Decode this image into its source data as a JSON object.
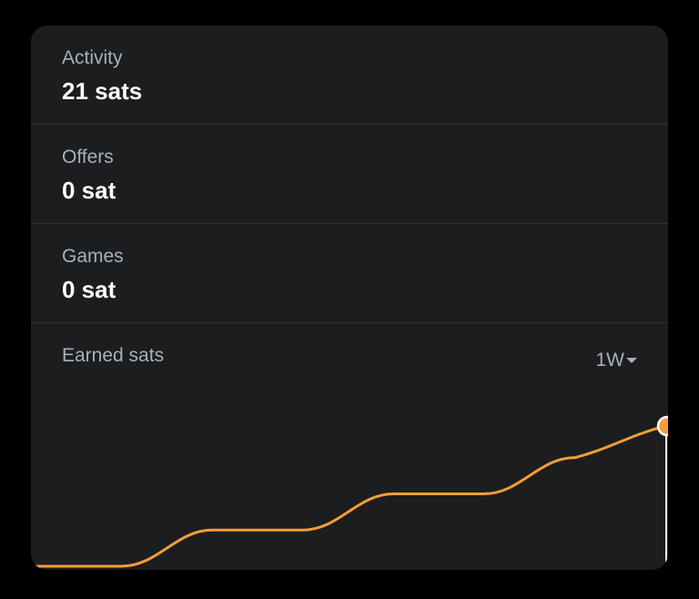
{
  "stats": [
    {
      "label": "Activity",
      "value": "21 sats"
    },
    {
      "label": "Offers",
      "value": "0 sat"
    },
    {
      "label": "Games",
      "value": "0 sat"
    }
  ],
  "chart": {
    "title": "Earned sats",
    "range_label": "1W"
  },
  "colors": {
    "line": "#f49d37",
    "background": "#1c1d1f",
    "label": "#a7b0bb"
  },
  "chart_data": {
    "type": "line",
    "title": "Earned sats",
    "xlabel": "",
    "ylabel": "",
    "x": [
      1,
      2,
      3,
      4,
      5,
      6,
      7,
      8
    ],
    "series": [
      {
        "values": [
          0,
          0,
          8,
          8,
          16,
          16,
          24,
          31
        ]
      }
    ],
    "ylim": [
      0,
      31
    ],
    "grid": false,
    "legend": "none",
    "selected_point_marker": true
  }
}
